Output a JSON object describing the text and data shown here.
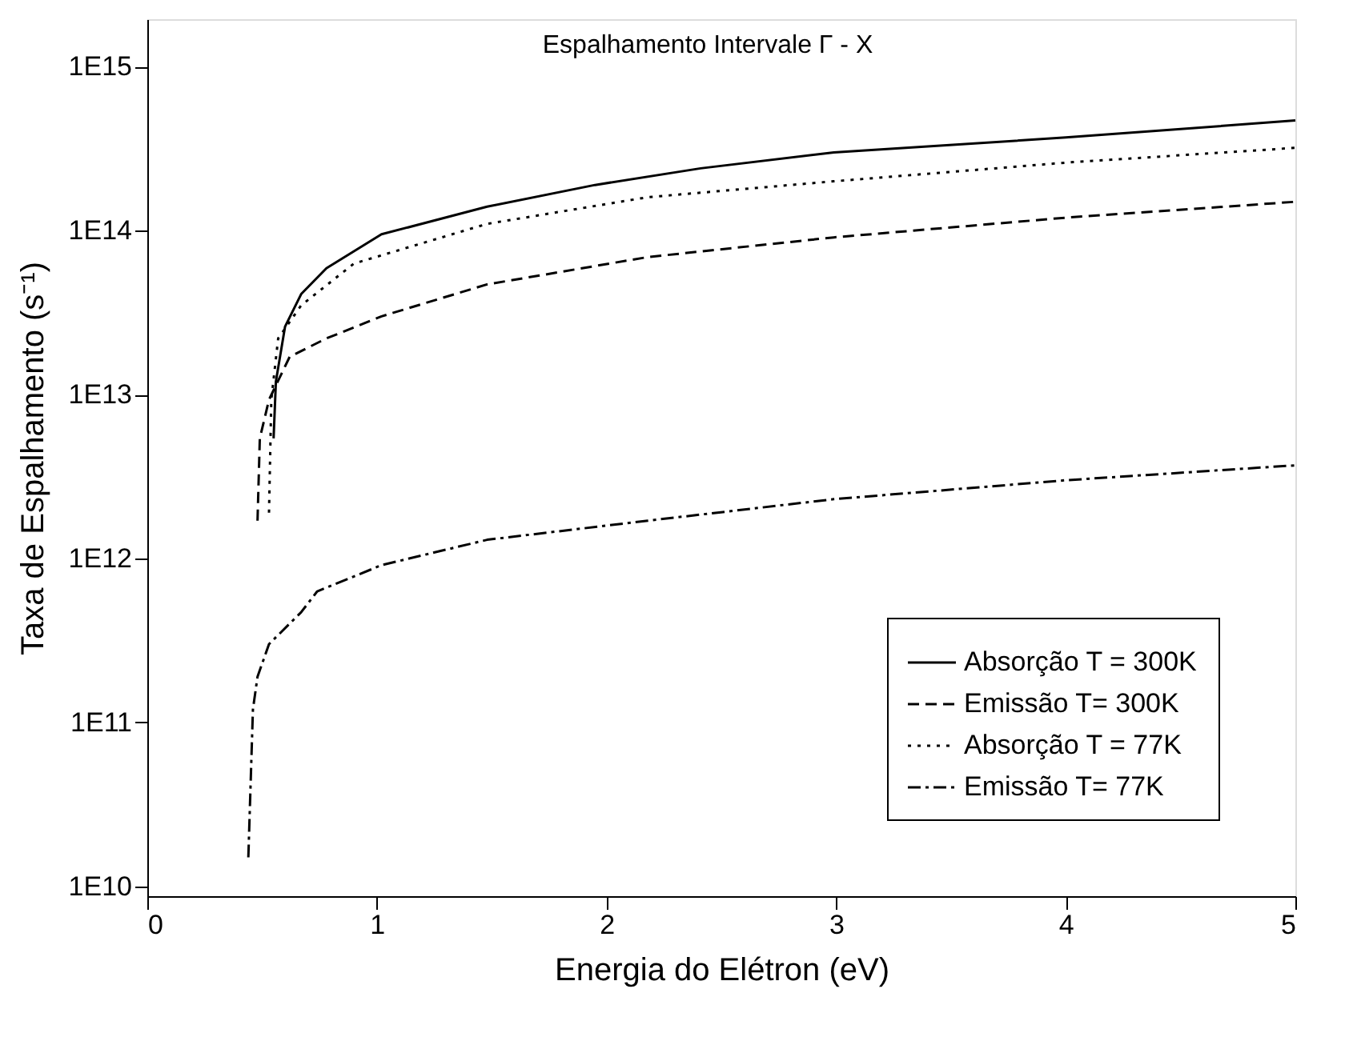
{
  "chart_data": {
    "type": "line",
    "annotations": [
      "Espalhamento Intervale Γ - X"
    ],
    "xlabel": "Energia do Elétron (eV)",
    "ylabel": "Taxa de Espalhamento (s⁻¹)",
    "xlim": [
      0,
      5
    ],
    "xticks": [
      0,
      1,
      2,
      3,
      4,
      5
    ],
    "ylim": [
      8700000000.0,
      1950000000000000.0
    ],
    "yticks": [
      {
        "value": 10000000000.0,
        "label": "1E10"
      },
      {
        "value": 100000000000.0,
        "label": "1E11"
      },
      {
        "value": 1000000000000.0,
        "label": "1E12"
      },
      {
        "value": 10000000000000.0,
        "label": "1E13"
      },
      {
        "value": 100000000000000.0,
        "label": "1E14"
      },
      {
        "value": 1000000000000000.0,
        "label": "1E15"
      }
    ],
    "log": "y",
    "grid": false,
    "legend": "bottom right",
    "marker": "none",
    "series": [
      {
        "name": "Absorção T = 300K",
        "color": "#000000",
        "line_style": "solid",
        "x": [
          0.55,
          0.56,
          0.6,
          0.67,
          0.78,
          1.02,
          1.48,
          1.95,
          2.41,
          2.99,
          4,
          5
        ],
        "values": [
          5400000000000.0,
          12000000000000.0,
          26000000000000.0,
          41000000000000.0,
          59000000000000.0,
          95000000000000.0,
          140000000000000.0,
          190000000000000.0,
          240000000000000.0,
          300000000000000.0,
          370000000000000.0,
          470000000000000.0
        ]
      },
      {
        "name": "Emissão  T= 300K",
        "color": "#000000",
        "line_style": "dashed",
        "x": [
          0.48,
          0.49,
          0.53,
          0.62,
          0.78,
          1.02,
          1.48,
          2.18,
          2.99,
          4,
          5
        ],
        "values": [
          1700000000000.0,
          5400000000000.0,
          9300000000000.0,
          17000000000000.0,
          22000000000000.0,
          30000000000000.0,
          47000000000000.0,
          69000000000000.0,
          91000000000000.0,
          120000000000000.0,
          150000000000000.0
        ]
      },
      {
        "name": "Absorção  T = 77K",
        "color": "#000000",
        "line_style": "dotted",
        "x": [
          0.53,
          0.54,
          0.57,
          0.67,
          0.9,
          1.48,
          2.18,
          2.99,
          4,
          5
        ],
        "values": [
          1900000000000.0,
          9300000000000.0,
          22000000000000.0,
          35000000000000.0,
          63000000000000.0,
          110000000000000.0,
          160000000000000.0,
          200000000000000.0,
          260000000000000.0,
          320000000000000.0
        ]
      },
      {
        "name": "Emissão  T= 77K",
        "color": "#000000",
        "line_style": "dashdot",
        "x": [
          0.44,
          0.46,
          0.48,
          0.53,
          0.67,
          0.74,
          1.02,
          1.48,
          2.18,
          2.99,
          4,
          5
        ],
        "values": [
          15000000000.0,
          120000000000.0,
          190000000000.0,
          300000000000.0,
          470000000000.0,
          630000000000.0,
          910000000000.0,
          1300000000000.0,
          1700000000000.0,
          2300000000000.0,
          3000000000000.0,
          3700000000000.0
        ]
      }
    ]
  }
}
